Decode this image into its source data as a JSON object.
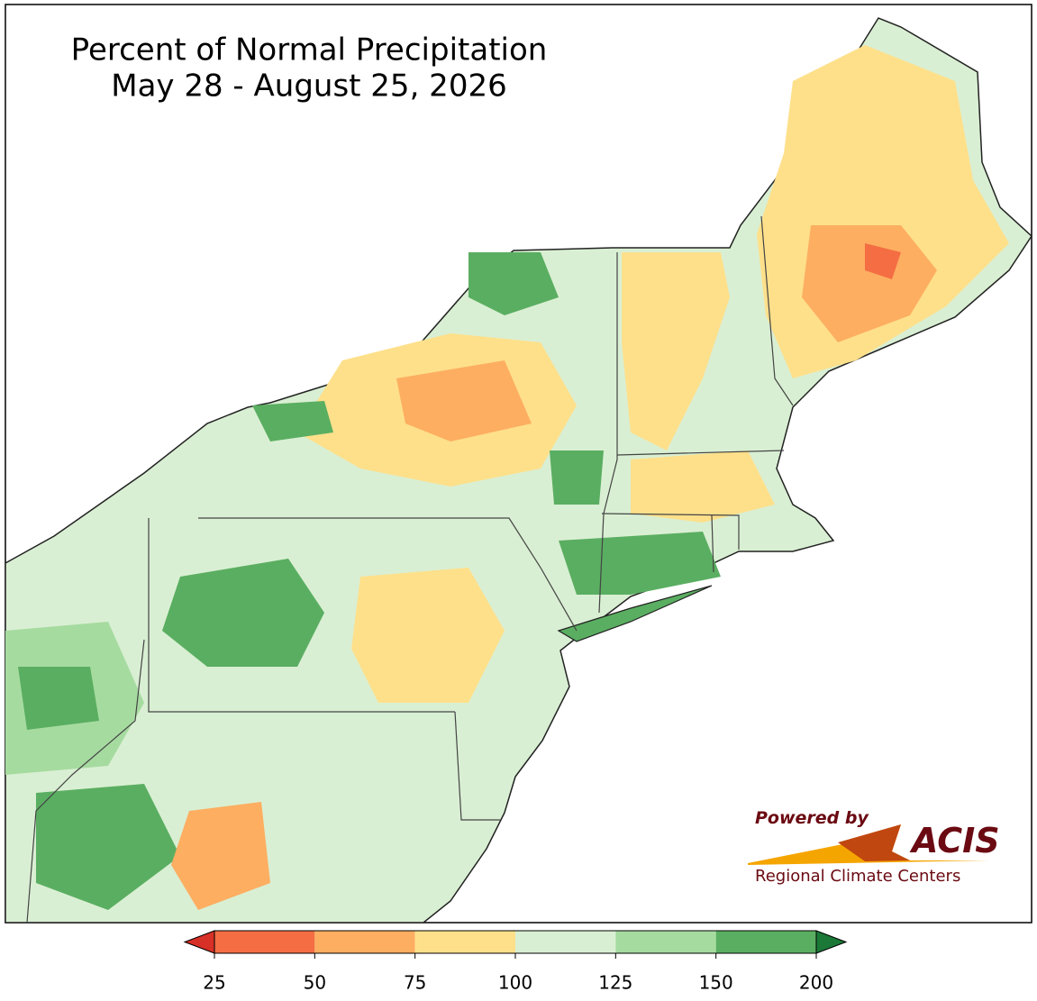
{
  "title": [
    "Percent of Normal Precipitation",
    "May 28 - August 25, 2026"
  ],
  "colorbar": {
    "ticks": [
      25,
      50,
      75,
      100,
      125,
      150,
      200
    ],
    "colors": [
      "#d73027",
      "#f46d43",
      "#fdae61",
      "#fee08b",
      "#d9efd3",
      "#a6dba0",
      "#5aae61",
      "#1b7837"
    ]
  },
  "logo": {
    "powered_by": "Powered by",
    "name": "ACIS",
    "subtitle": "Regional Climate Centers"
  }
}
